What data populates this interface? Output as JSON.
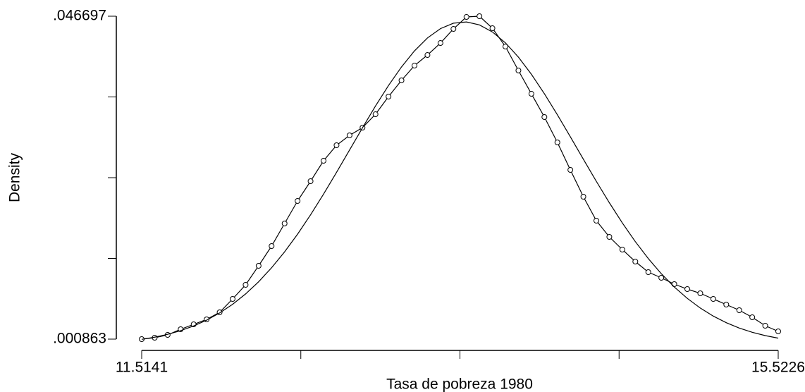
{
  "chart_data": {
    "type": "line",
    "xlabel": "Tasa de pobreza 1980",
    "ylabel": "Density",
    "xlim": [
      11.5141,
      15.5226
    ],
    "xticks": [
      11.5141,
      15.5226
    ],
    "ylim": [
      0.000863,
      0.046697
    ],
    "yticks": [
      {
        "value": 0.000863,
        "label": ".000863"
      },
      {
        "value": 0.046697,
        "label": ".046697"
      }
    ],
    "grid": false,
    "x": [
      11.5141,
      11.5959,
      11.6777,
      11.7595,
      11.8413,
      11.9231,
      12.0049,
      12.0867,
      12.1685,
      12.2504,
      12.3322,
      12.414,
      12.4958,
      12.5776,
      12.6594,
      12.7412,
      12.823,
      12.9048,
      12.9866,
      13.0684,
      13.1502,
      13.232,
      13.3138,
      13.3956,
      13.4774,
      13.5593,
      13.6411,
      13.7229,
      13.8047,
      13.8865,
      13.9683,
      14.0501,
      14.1319,
      14.2137,
      14.2955,
      14.3773,
      14.4591,
      14.5409,
      14.6227,
      14.7045,
      14.7863,
      14.8682,
      14.95,
      15.0318,
      15.1136,
      15.1954,
      15.2772,
      15.359,
      15.4408,
      15.5226
    ],
    "series": [
      {
        "color": "#000000",
        "marker": "circle",
        "values": [
          0.000863,
          0.001063,
          0.001463,
          0.002264,
          0.002964,
          0.003665,
          0.004666,
          0.006567,
          0.008568,
          0.01127,
          0.014072,
          0.017274,
          0.020477,
          0.023279,
          0.026181,
          0.028382,
          0.029783,
          0.030884,
          0.032785,
          0.035287,
          0.037589,
          0.03969,
          0.041191,
          0.042892,
          0.044894,
          0.046595,
          0.046697,
          0.044994,
          0.042392,
          0.03899,
          0.035687,
          0.032385,
          0.028783,
          0.02488,
          0.021077,
          0.017675,
          0.015373,
          0.013572,
          0.011871,
          0.01037,
          0.009569,
          0.008668,
          0.007968,
          0.007368,
          0.006567,
          0.005766,
          0.004966,
          0.003965,
          0.002764,
          0.001964
        ]
      },
      {
        "color": "#000000",
        "marker": "none",
        "values": [
          0.000829,
          0.001139,
          0.001544,
          0.002065,
          0.002728,
          0.003555,
          0.004574,
          0.005806,
          0.007279,
          0.009005,
          0.010996,
          0.01325,
          0.01576,
          0.01851,
          0.021447,
          0.024535,
          0.027698,
          0.030864,
          0.033953,
          0.036858,
          0.039497,
          0.041778,
          0.043614,
          0.044936,
          0.045707,
          0.045882,
          0.045464,
          0.044463,
          0.042917,
          0.040892,
          0.038455,
          0.035693,
          0.032705,
          0.029575,
          0.026399,
          0.023255,
          0.020226,
          0.017357,
          0.014705,
          0.012295,
          0.010147,
          0.008266,
          0.006646,
          0.005273,
          0.004131,
          0.003194,
          0.002437,
          0.001836,
          0.001363,
          0.001001
        ]
      }
    ]
  }
}
